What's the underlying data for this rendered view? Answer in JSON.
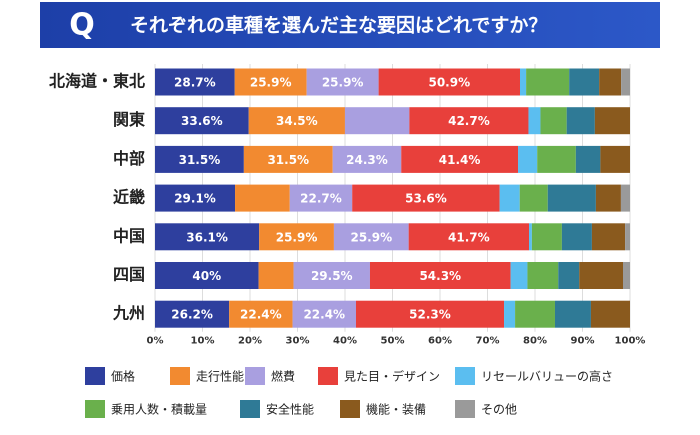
{
  "chart_data": {
    "type": "stacked-bar-horizontal",
    "normalize": true,
    "grid": true,
    "title_badge": "Q",
    "title": "それぞれの車種を選んだ主な要因はどれですか？",
    "categories": [
      "北海道・東北",
      "関東",
      "中部",
      "近畿",
      "中国",
      "四国",
      "九州"
    ],
    "xlim": [
      0,
      100
    ],
    "xticks": [
      {
        "value": 0,
        "label": "0%"
      },
      {
        "value": 10,
        "label": "10%"
      },
      {
        "value": 20,
        "label": "20%"
      },
      {
        "value": 30,
        "label": "30%"
      },
      {
        "value": 40,
        "label": "40%"
      },
      {
        "value": 50,
        "label": "50%"
      },
      {
        "value": 60,
        "label": "60%"
      },
      {
        "value": 70,
        "label": "70%"
      },
      {
        "value": 80,
        "label": "80%"
      },
      {
        "value": 90,
        "label": "90%"
      },
      {
        "value": 100,
        "label": "100%"
      }
    ],
    "series": [
      {
        "name": "価格",
        "color": "#2e3f9e",
        "values": [
          28.7,
          33.6,
          31.5,
          29.1,
          36.1,
          40,
          26.2
        ],
        "value_labels": [
          "28.7%",
          "33.6%",
          "31.5%",
          "29.1%",
          "36.1%",
          "40%",
          "26.2%"
        ]
      },
      {
        "name": "走行性能",
        "color": "#f28a30",
        "values": [
          25.9,
          34.5,
          31.5,
          19.9,
          25.9,
          13.5,
          22.4
        ],
        "value_labels": [
          "25.9%",
          "34.5%",
          "31.5%",
          null,
          "25.9%",
          null,
          "22.4%"
        ]
      },
      {
        "name": "燃費",
        "color": "#a99fe0",
        "values": [
          25.9,
          23.1,
          24.3,
          22.7,
          25.9,
          29.5,
          22.4
        ],
        "value_labels": [
          "25.9%",
          null,
          "24.3%",
          "22.7%",
          "25.9%",
          "29.5%",
          "22.4%"
        ]
      },
      {
        "name": "見た目・デザイン",
        "color": "#e8403b",
        "values": [
          50.9,
          42.7,
          41.4,
          53.6,
          41.7,
          54.3,
          52.3
        ],
        "value_labels": [
          "50.9%",
          "42.7%",
          "41.4%",
          "53.6%",
          "41.7%",
          "54.3%",
          "52.3%"
        ]
      },
      {
        "name": "リセールバリューの高さ",
        "color": "#5bbef0",
        "values": [
          2.2,
          4.3,
          6.8,
          7.3,
          1,
          6.5,
          3.9
        ]
      },
      {
        "name": "乗用人数・積載量",
        "color": "#6ab04c",
        "values": [
          15.5,
          9.4,
          13.7,
          10.2,
          10.4,
          11.9,
          14.1
        ]
      },
      {
        "name": "安全性能",
        "color": "#2f7a96",
        "values": [
          10.8,
          10.1,
          8.7,
          17.5,
          10.4,
          8.1,
          12.7
        ]
      },
      {
        "name": "機能・装備",
        "color": "#8a5a1e",
        "values": [
          7.9,
          12.6,
          10.5,
          9.1,
          11.5,
          16.9,
          13.8
        ]
      },
      {
        "name": "その他",
        "color": "#9a9a9a",
        "values": [
          3.2,
          0,
          0,
          3.3,
          1.7,
          2.7,
          0
        ]
      }
    ]
  }
}
